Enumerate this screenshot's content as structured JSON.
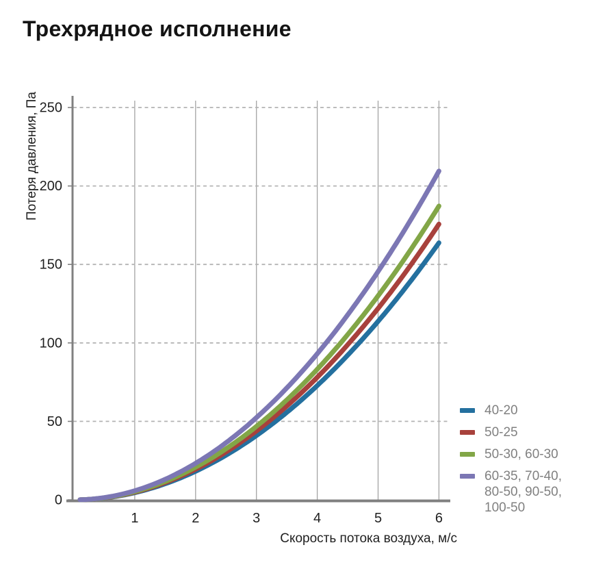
{
  "chart_data": {
    "type": "line",
    "title": "Трехрядное исполнение",
    "xlabel": "Скорость потока воздуха, м/с",
    "ylabel": "Потеря давления, Па",
    "xlim": [
      0,
      6
    ],
    "ylim": [
      0,
      250
    ],
    "xticks": [
      1,
      2,
      3,
      4,
      5,
      6
    ],
    "yticks": [
      0,
      50,
      100,
      150,
      200,
      250
    ],
    "grid": {
      "horizontal": "dashed",
      "vertical": "solid"
    },
    "legend_position": "right-bottom",
    "curve_model": "y = a * x^2",
    "curve_x_start": 0.1,
    "curve_x_end": 6,
    "series": [
      {
        "name": "40-20",
        "legend_lines": [
          "40-20"
        ],
        "color": "#24709f",
        "a": 4.55,
        "x": [
          1,
          2,
          3,
          4,
          5,
          6
        ],
        "y": [
          4.6,
          18.2,
          41.0,
          72.8,
          113.8,
          163.8
        ]
      },
      {
        "name": "50-25",
        "legend_lines": [
          "50-25"
        ],
        "color": "#a8413c",
        "a": 4.88,
        "x": [
          1,
          2,
          3,
          4,
          5,
          6
        ],
        "y": [
          4.9,
          19.5,
          43.9,
          78.1,
          122.0,
          175.7
        ]
      },
      {
        "name": "50-30, 60-30",
        "legend_lines": [
          "50-30, 60-30"
        ],
        "color": "#82a647",
        "a": 5.2,
        "x": [
          1,
          2,
          3,
          4,
          5,
          6
        ],
        "y": [
          5.2,
          20.8,
          46.8,
          83.2,
          130.0,
          187.2
        ]
      },
      {
        "name": "60-35, 70-40, 80-50, 90-50, 100-50",
        "legend_lines": [
          "60-35, 70-40,",
          "80-50, 90-50,",
          "100-50"
        ],
        "color": "#7c77b4",
        "a": 5.82,
        "x": [
          1,
          2,
          3,
          4,
          5,
          6
        ],
        "y": [
          5.8,
          23.3,
          52.4,
          93.1,
          145.5,
          209.5
        ]
      }
    ],
    "colors": {
      "axis": "#808080",
      "grid_vertical": "#a3a3a3",
      "grid_dashed": "#b3b3b3",
      "tick_text": "#1f1f1f",
      "legend_text": "#808080",
      "title_text": "#141414"
    }
  }
}
